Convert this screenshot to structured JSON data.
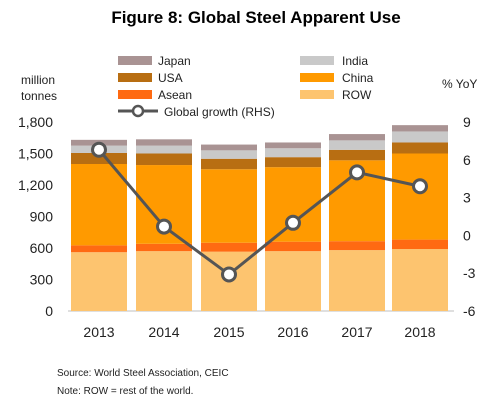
{
  "chart_data": {
    "type": "bar",
    "title": "Figure 8: Global Steel Apparent Use",
    "left_axis_title": [
      "million",
      "tonnes"
    ],
    "right_axis_title": "% YoY",
    "categories": [
      "2013",
      "2014",
      "2015",
      "2016",
      "2017",
      "2018"
    ],
    "left_ticks": [
      "0",
      "300",
      "600",
      "900",
      "1,200",
      "1,500",
      "1,800"
    ],
    "right_ticks": [
      "-6",
      "-3",
      "0",
      "3",
      "6",
      "9"
    ],
    "ylim": [
      0,
      1800
    ],
    "y2lim": [
      -6,
      9
    ],
    "stacked": true,
    "series": [
      {
        "name": "ROW",
        "color": "#FDC46F",
        "values": [
          560,
          570,
          565,
          570,
          580,
          590
        ]
      },
      {
        "name": "Asean",
        "color": "#FF6A12",
        "values": [
          65,
          70,
          85,
          90,
          85,
          90
        ]
      },
      {
        "name": "China",
        "color": "#FF9A00",
        "values": [
          775,
          750,
          700,
          710,
          770,
          820
        ]
      },
      {
        "name": "USA",
        "color": "#B86E12",
        "values": [
          105,
          110,
          100,
          95,
          100,
          105
        ]
      },
      {
        "name": "India",
        "color": "#C9C9C9",
        "values": [
          70,
          75,
          80,
          85,
          90,
          105
        ]
      },
      {
        "name": "Japan",
        "color": "#A99393",
        "values": [
          55,
          60,
          55,
          55,
          60,
          60
        ]
      }
    ],
    "line_series": {
      "name": "Global growth (RHS)",
      "color": "#555555",
      "values": [
        6.8,
        0.7,
        -3.1,
        1.0,
        5.0,
        3.9
      ]
    },
    "legend": {
      "placement": "top",
      "order": [
        "Japan",
        "India",
        "USA",
        "China",
        "Asean",
        "ROW",
        "Global growth (RHS)"
      ]
    }
  },
  "notes": {
    "source": "Source: World Steel Association, CEIC",
    "note": "Note: ROW = rest of the world."
  }
}
